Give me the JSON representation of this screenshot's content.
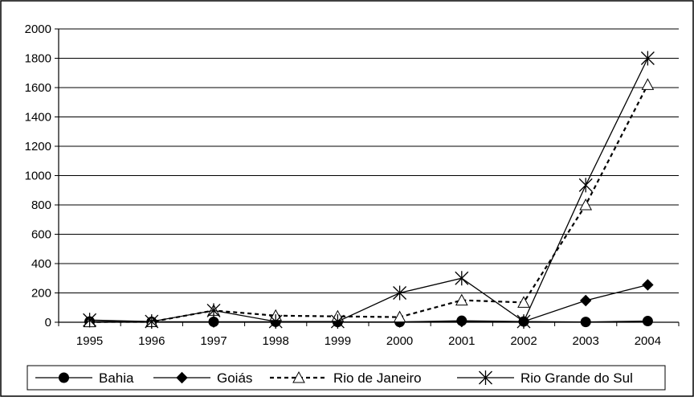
{
  "chart_data": {
    "type": "line",
    "title": "",
    "xlabel": "",
    "ylabel": "",
    "categories": [
      "1995",
      "1996",
      "1997",
      "1998",
      "1999",
      "2000",
      "2001",
      "2002",
      "2003",
      "2004"
    ],
    "yticks": [
      "0",
      "200",
      "400",
      "600",
      "800",
      "1000",
      "1200",
      "1400",
      "1600",
      "1800",
      "2000"
    ],
    "ylim": [
      0,
      2000
    ],
    "grid": true,
    "legend_position": "bottom",
    "series": [
      {
        "name": "Bahia",
        "marker": "circle",
        "dash": "solid",
        "values": [
          5,
          3,
          3,
          3,
          2,
          2,
          10,
          5,
          2,
          8
        ]
      },
      {
        "name": "Goiás",
        "marker": "diamond",
        "dash": "solid",
        "values": [
          3,
          2,
          2,
          2,
          2,
          2,
          5,
          5,
          148,
          255
        ]
      },
      {
        "name": "Rio de Janeiro",
        "marker": "triangle",
        "dash": "dashed",
        "values": [
          2,
          3,
          80,
          45,
          40,
          35,
          150,
          135,
          800,
          1620
        ]
      },
      {
        "name": "Rio Grande do Sul",
        "marker": "asterisk",
        "dash": "solid",
        "values": [
          15,
          5,
          80,
          5,
          5,
          200,
          300,
          5,
          935,
          1800
        ]
      }
    ],
    "colors": {
      "line": "#000000",
      "grid": "#000000",
      "background": "#ffffff"
    }
  }
}
